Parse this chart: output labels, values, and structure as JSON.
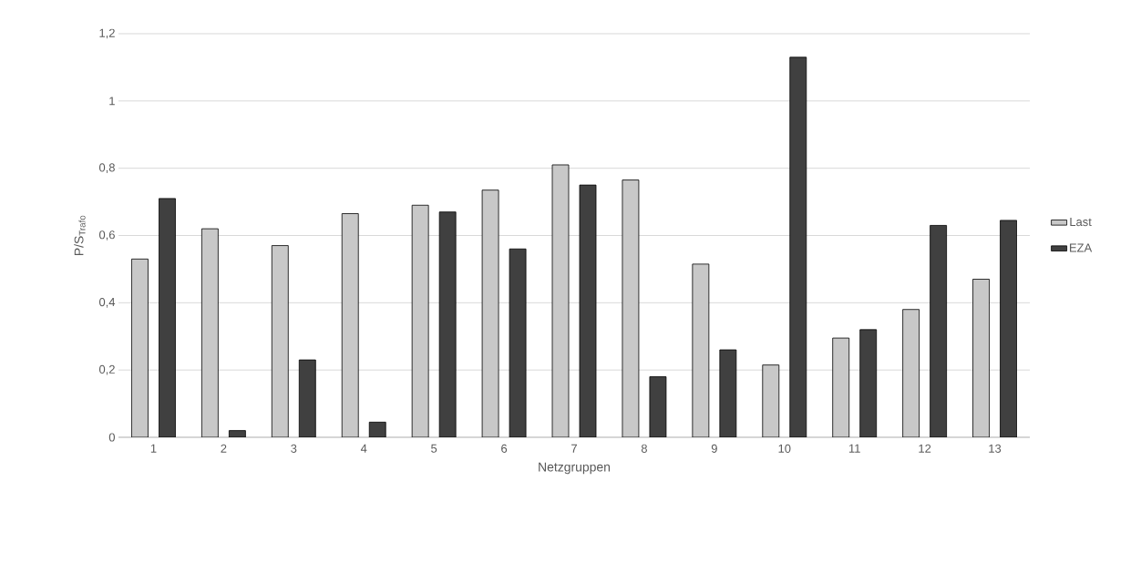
{
  "chart_data": {
    "type": "bar",
    "xlabel": "Netzgruppen",
    "ylabel": "P/S$_{Trafo}$",
    "categories": [
      "1",
      "2",
      "3",
      "4",
      "5",
      "6",
      "7",
      "8",
      "9",
      "10",
      "11",
      "12",
      "13"
    ],
    "series": [
      {
        "name": "Last",
        "color": "#c8c8c8",
        "values": [
          0.53,
          0.62,
          0.57,
          0.665,
          0.69,
          0.735,
          0.81,
          0.765,
          0.515,
          0.215,
          0.295,
          0.38,
          0.47
        ]
      },
      {
        "name": "EZA",
        "color": "#404040",
        "values": [
          0.71,
          0.02,
          0.23,
          0.045,
          0.67,
          0.56,
          0.75,
          0.18,
          0.26,
          1.13,
          0.32,
          0.63,
          0.645
        ]
      }
    ],
    "ylim": [
      0,
      1.2
    ],
    "yticks": [
      0,
      {
        "value": 0.2,
        "label": "0,2"
      },
      {
        "value": 0.4,
        "label": "0,4"
      },
      {
        "value": 0.6,
        "label": "0,6"
      },
      {
        "value": 0.8,
        "label": "0,8"
      },
      1,
      {
        "value": 1.2,
        "label": "1,2"
      }
    ],
    "grid": "y",
    "legend": "right"
  }
}
